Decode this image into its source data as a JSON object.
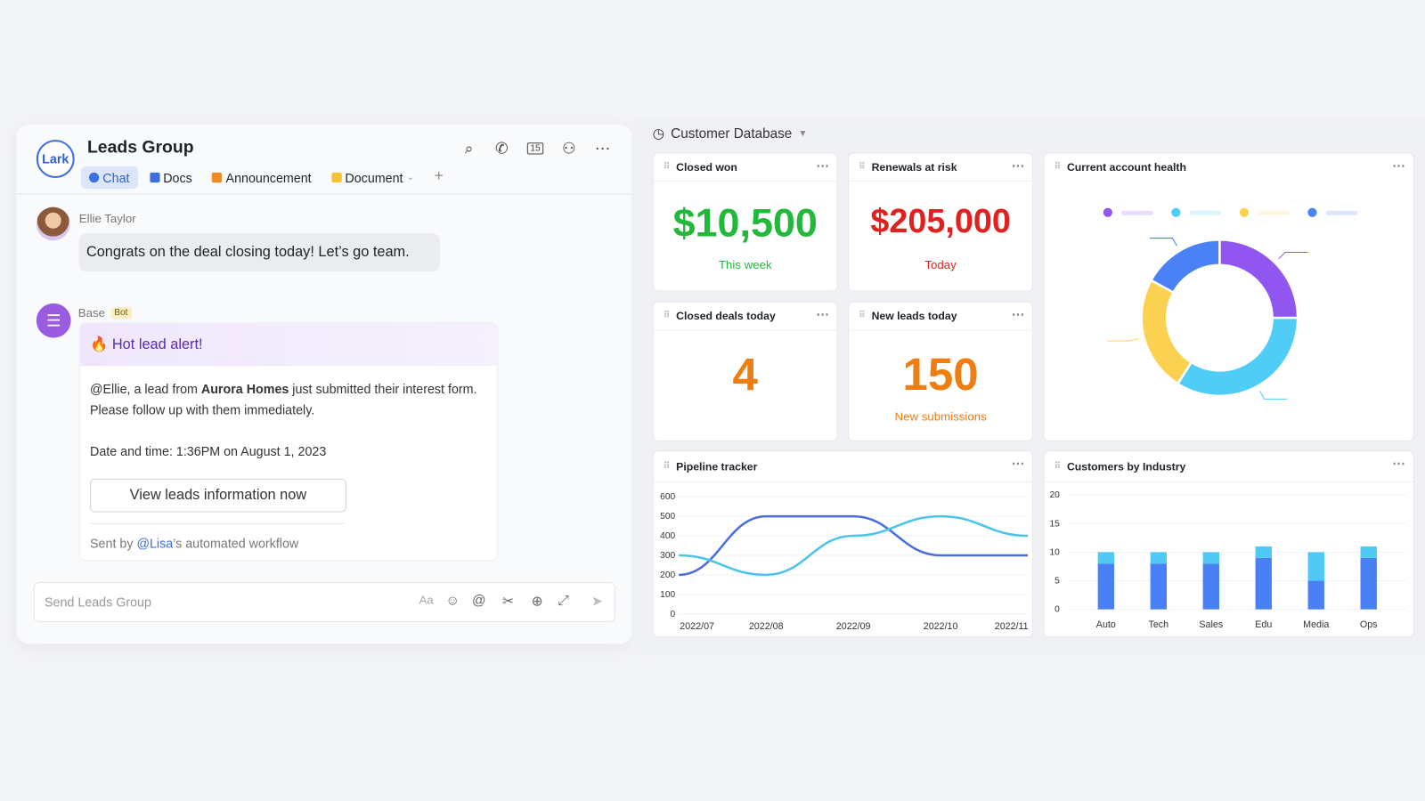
{
  "chat": {
    "logo": "Lark",
    "title": "Leads Group",
    "header_icons": [
      "search-icon",
      "call-icon",
      "calendar-icon",
      "add-member-icon",
      "more-icon"
    ],
    "tabs": [
      {
        "label": "Chat",
        "color": "#3c6fe0"
      },
      {
        "label": "Docs",
        "color": "#3c6fe0"
      },
      {
        "label": "Announcement",
        "color": "#f08a24"
      },
      {
        "label": "Document",
        "color": "#f5c231"
      }
    ],
    "messages": {
      "user": {
        "name": "Ellie Taylor",
        "text": "Congrats on the deal closing today! Let’s go team."
      },
      "bot": {
        "name": "Base",
        "badge": "Bot",
        "card_title": "Hot lead alert!",
        "body_prefix": "@Ellie, a lead from ",
        "body_bold": "Aurora Homes",
        "body_suffix": " just submitted their interest form. Please follow up with them immediately.",
        "datetime": "Date and time: 1:36PM on August 1, 2023",
        "button": "View leads information now",
        "sent_prefix": "Sent by ",
        "sent_mention": "@Lisa",
        "sent_suffix": "’s automated workflow"
      }
    },
    "input_placeholder": "Send Leads Group"
  },
  "dashboard": {
    "title": "Customer Database",
    "closed_won": {
      "title": "Closed won",
      "value": "$10,500",
      "sub": "This week",
      "color": "#22b83a"
    },
    "renewals": {
      "title": "Renewals at risk",
      "value": "$205,000",
      "sub": "Today",
      "color": "#e0211f"
    },
    "closed_deals": {
      "title": "Closed deals today",
      "value": "4",
      "color": "#f07d0f"
    },
    "new_leads": {
      "title": "New leads today",
      "value": "150",
      "sub": "New submissions",
      "color": "#f07d0f"
    },
    "health": {
      "title": "Current account health"
    },
    "pipeline": {
      "title": "Pipeline tracker"
    },
    "industry": {
      "title": "Customers by Industry"
    }
  },
  "chart_data": [
    {
      "type": "pie",
      "donut": true,
      "values": [
        25,
        34,
        24,
        17
      ],
      "colors": [
        "#9155f0",
        "#4fcdf7",
        "#fad150",
        "#4a82f5"
      ],
      "legend": "top"
    },
    {
      "type": "line",
      "x": [
        "2022/07",
        "2022/08",
        "2022/09",
        "2022/10",
        "2022/11"
      ],
      "ylim": [
        0,
        600
      ],
      "yticks": [
        0,
        100,
        200,
        300,
        400,
        500,
        600
      ],
      "series": [
        {
          "values": [
            200,
            500,
            500,
            300,
            300
          ],
          "color": "#4a6fdc"
        },
        {
          "values": [
            300,
            200,
            400,
            500,
            400
          ],
          "color": "#4cc3ea"
        }
      ]
    },
    {
      "type": "bar",
      "stacked": true,
      "categories": [
        "Auto",
        "Tech",
        "Sales",
        "Edu",
        "Media",
        "Ops"
      ],
      "ylim": [
        0,
        20
      ],
      "yticks": [
        0,
        5,
        10,
        15,
        20
      ],
      "series": [
        {
          "values": [
            8,
            8,
            8,
            9,
            5,
            9
          ],
          "color": "#4a80f5"
        },
        {
          "values": [
            2,
            2,
            2,
            2,
            5,
            2
          ],
          "color": "#4fcaf7"
        }
      ]
    }
  ]
}
